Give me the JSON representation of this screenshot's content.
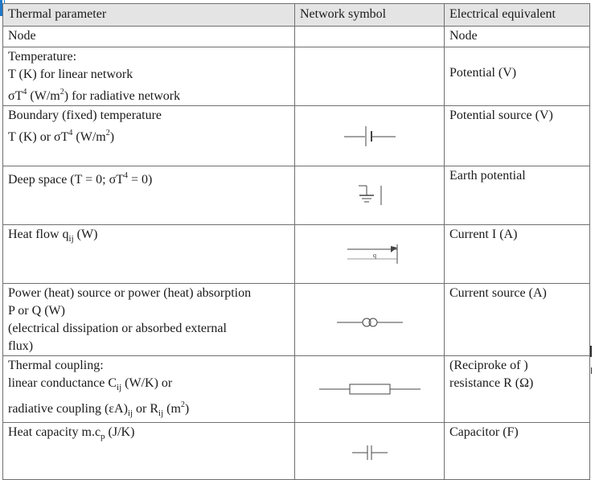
{
  "headers": {
    "parameter": "Thermal parameter",
    "symbol": "Network symbol",
    "equivalent": "Electrical equivalent"
  },
  "rows": [
    {
      "parameter": "Node",
      "equivalent": "Node",
      "symbol_icon": ""
    },
    {
      "parameter_lines": [
        "Temperature:",
        "T (K)  for linear network",
        "σT⁴ (W/m²)  for radiative network"
      ],
      "equivalent": "Potential (V)",
      "symbol_icon": ""
    },
    {
      "parameter_lines": [
        "Boundary (fixed)  temperature",
        "T (K)  or  σT⁴ (W/m²)"
      ],
      "equivalent": "Potential source (V)",
      "symbol_icon": "voltage-source-symbol"
    },
    {
      "parameter": "Deep space (T = 0;  σT⁴ = 0)",
      "equivalent": "Earth potential",
      "symbol_icon": "ground-symbol"
    },
    {
      "parameter": "Heat flow qij (W)",
      "equivalent": "Current I (A)",
      "symbol_icon": "current-arrow-symbol",
      "symbol_label": "q"
    },
    {
      "parameter_lines": [
        "Power (heat) source or power (heat) absorption",
        "P or Q (W)",
        "(electrical dissipation or absorbed external",
        "flux)"
      ],
      "equivalent": "Current source (A)",
      "symbol_icon": "current-source-symbol"
    },
    {
      "parameter_lines": [
        "Thermal coupling:",
        "linear conductance Cij  (W/K)  or",
        "radiative coupling (εA)ij or Rij  (m²)"
      ],
      "equivalent_lines": [
        "(Reciproke of )",
        "resistance R (Ω)"
      ],
      "symbol_icon": "resistor-symbol"
    },
    {
      "parameter": "Heat capacity   m.cp  (J/K)",
      "equivalent": "Capacitor (F)",
      "symbol_icon": "capacitor-symbol"
    }
  ]
}
